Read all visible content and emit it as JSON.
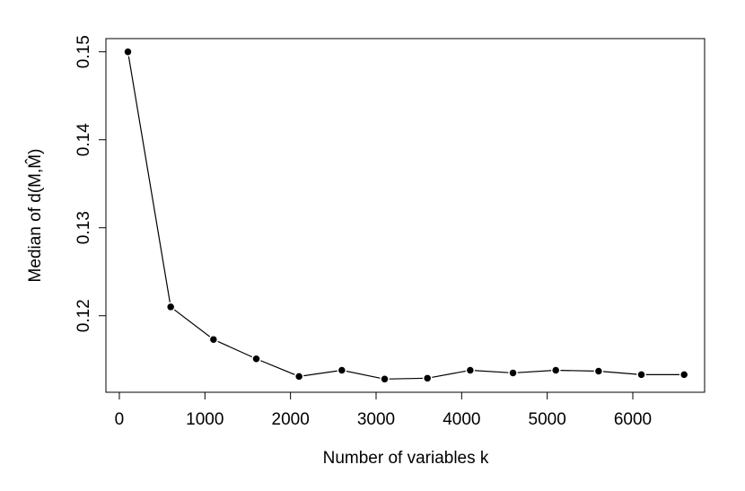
{
  "chart_data": {
    "type": "line",
    "xlabel": "Number of variables k",
    "ylabel": "Median of d(M,M̂)",
    "x": [
      100,
      600,
      1100,
      1600,
      2100,
      2600,
      3100,
      3600,
      4100,
      4600,
      5100,
      5600,
      6100,
      6600
    ],
    "values": [
      0.15,
      0.121,
      0.1173,
      0.1151,
      0.1131,
      0.1138,
      0.1128,
      0.1129,
      0.1138,
      0.1135,
      0.1138,
      0.1137,
      0.1133,
      0.1133
    ],
    "color": "#000000",
    "xlim": [
      -157,
      6839
    ],
    "ylim": [
      0.1113,
      0.1515
    ],
    "xticks": [
      0,
      1000,
      2000,
      3000,
      4000,
      5000,
      6000
    ],
    "yticks": [
      0.12,
      0.13,
      0.14,
      0.15
    ]
  }
}
